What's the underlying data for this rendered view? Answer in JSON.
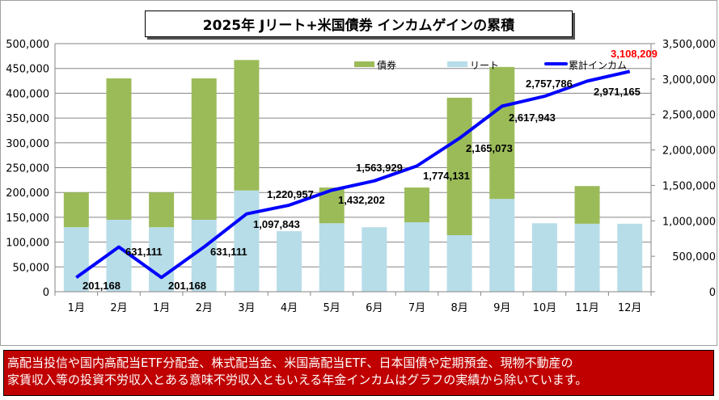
{
  "chart_data": {
    "type": "bar+line",
    "title": "2025年  Jリート+米国債券 インカムゲインの累積",
    "categories": [
      "1月",
      "2月",
      "1月",
      "2月",
      "3月",
      "4月",
      "5月",
      "6月",
      "7月",
      "8月",
      "9月",
      "10月",
      "11月",
      "12月"
    ],
    "series": [
      {
        "name": "債券",
        "type": "stacked-bar",
        "axis": "left",
        "color": "#9bbb59",
        "values": [
          70000,
          285000,
          70000,
          285000,
          263000,
          0,
          72000,
          0,
          70000,
          277000,
          266000,
          0,
          76000,
          0
        ]
      },
      {
        "name": "リート",
        "type": "stacked-bar",
        "axis": "left",
        "color": "#b7dde8",
        "values": [
          130000,
          145000,
          130000,
          145000,
          204000,
          122000,
          138000,
          130000,
          140000,
          114000,
          187000,
          138000,
          137000,
          137000
        ]
      },
      {
        "name": "累計インカム",
        "type": "line",
        "axis": "right",
        "color": "#0000ff",
        "values": [
          201168,
          631111,
          201168,
          631111,
          1097843,
          1220957,
          1432202,
          1563929,
          1774131,
          2165073,
          2617943,
          2757786,
          2971165,
          3108209
        ],
        "labels": [
          "201,168",
          "631,111",
          "201,168",
          "631,111",
          "1,097,843",
          "1,220,957",
          "1,432,202",
          "1,563,929",
          "1,774,131",
          "2,165,073",
          "2,617,943",
          "2,757,786",
          "2,971,165",
          "3,108,209"
        ],
        "highlight_last_color": "#ff0000"
      }
    ],
    "left_axis": {
      "range": [
        0,
        500000
      ],
      "ticks": [
        "0",
        "50,000",
        "100,000",
        "150,000",
        "200,000",
        "250,000",
        "300,000",
        "350,000",
        "400,000",
        "450,000",
        "500,000"
      ]
    },
    "right_axis": {
      "range": [
        0,
        3500000
      ],
      "ticks": [
        "0",
        "500,000",
        "1,000,000",
        "1,500,000",
        "2,000,000",
        "2,500,000",
        "3,000,000",
        "3,500,000"
      ]
    },
    "grid": true,
    "legend": "top-right"
  },
  "note": {
    "line1": "高配当投信や国内高配当ETF分配金、株式配当金、米国高配当ETF、日本国債や定期預金、現物不動産の",
    "line2": "家賃収入等の投資不労収入とある意味不労収入ともいえる年金インカムはグラフの実績から除いています。"
  }
}
